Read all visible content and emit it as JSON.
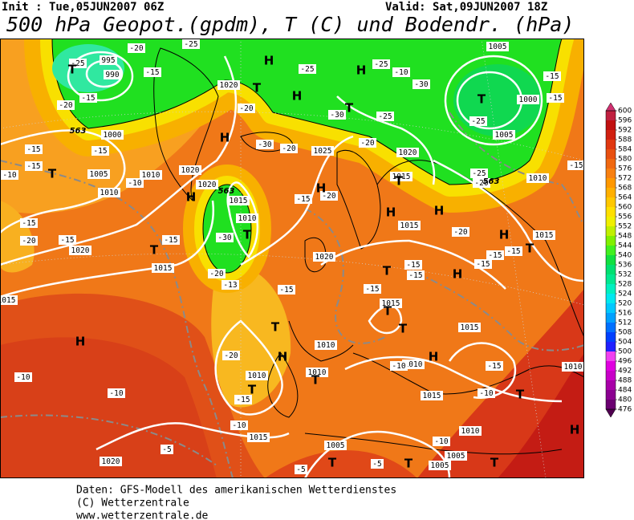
{
  "header": {
    "init": "Init : Tue,05JUN2007 06Z",
    "valid": "Valid: Sat,09JUN2007 18Z",
    "title": "500 hPa Geopot.(gpdm), T (C) und Bodendr. (hPa)"
  },
  "map": {
    "pressure_centers": [
      "T",
      "H",
      "H",
      "T",
      "H",
      "T",
      "T",
      "H",
      "T",
      "H",
      "T",
      "H",
      "T",
      "H",
      "H",
      "H",
      "T",
      "T",
      "H",
      "T",
      "T",
      "T",
      "T",
      "H",
      "H",
      "T",
      "H",
      "T",
      "T",
      "H",
      "T",
      "T",
      "T"
    ],
    "pressure_labels": [
      "995",
      "990",
      "1005",
      "1000",
      "1005",
      "1020",
      "1000",
      "1005",
      "1010",
      "1010",
      "1020",
      "1020",
      "1015",
      "1010",
      "1025",
      "1020",
      "1015",
      "1015",
      "1015",
      "1010",
      "1020",
      "1015",
      "1020",
      "1015",
      "1015",
      "1015",
      "1010",
      "1010",
      "1010",
      "1010",
      "1010",
      "1015",
      "1015",
      "1010",
      "1005",
      "1005",
      "1005",
      "1020"
    ],
    "temperature_labels": [
      "-25",
      "-20",
      "-15",
      "-20",
      "-15",
      "-25",
      "-25",
      "-25",
      "-30",
      "-30",
      "-25",
      "-20",
      "-30",
      "-20",
      "-20",
      "-15",
      "-15",
      "-15",
      "-10",
      "-10",
      "-15",
      "-20",
      "-15",
      "-15",
      "-30",
      "-20",
      "-13",
      "-15",
      "-20",
      "-20",
      "-25",
      "-25",
      "-15",
      "-15",
      "-15",
      "-15",
      "-15",
      "-15",
      "-15",
      "-15",
      "-15",
      "-15",
      "-20",
      "-20",
      "-10",
      "-10",
      "-15",
      "-10",
      "-15",
      "-10",
      "-10",
      "-5",
      "-5",
      "-5",
      "-10",
      "-10"
    ],
    "height_labels": [
      "563",
      "563",
      "563"
    ]
  },
  "colorbar": {
    "lim": [
      476,
      600
    ],
    "ticks": [
      600,
      596,
      592,
      588,
      584,
      580,
      576,
      572,
      568,
      564,
      560,
      556,
      552,
      548,
      544,
      540,
      536,
      532,
      528,
      524,
      520,
      516,
      512,
      508,
      504,
      500,
      496,
      492,
      488,
      484,
      480,
      476
    ],
    "colors": [
      "#6a0070",
      "#8a0090",
      "#a800a8",
      "#c800c8",
      "#e000e0",
      "#f040f0",
      "#2020ff",
      "#0040ff",
      "#0070ff",
      "#00a0ff",
      "#00c8ff",
      "#00e8f0",
      "#00f0c0",
      "#00e890",
      "#00e070",
      "#10e040",
      "#40f020",
      "#80f000",
      "#c0f000",
      "#f0f000",
      "#ffe000",
      "#ffc800",
      "#ffb000",
      "#ff9800",
      "#f88010",
      "#f06810",
      "#e85010",
      "#e03810",
      "#d02010",
      "#c01010",
      "#c02040"
    ],
    "over_color": "#d03070",
    "under_color": "#500050"
  },
  "footer": [
    "Daten: GFS-Modell des amerikanischen Wetterdienstes",
    "(C) Wetterzentrale",
    "www.wetterzentrale.de"
  ]
}
